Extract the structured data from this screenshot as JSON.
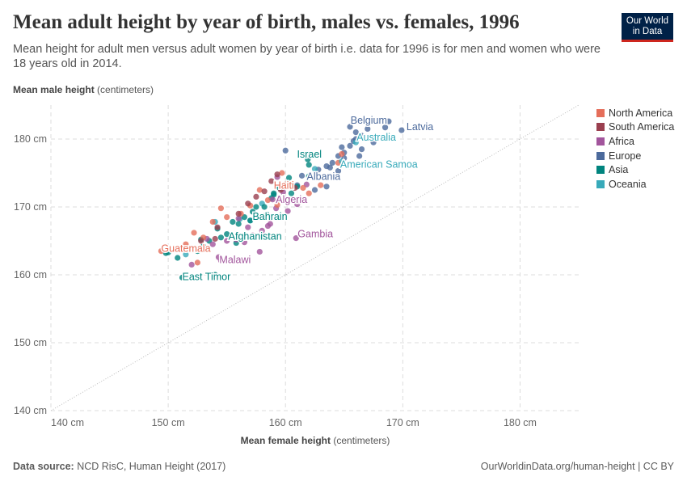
{
  "title": "Mean adult height by year of birth, males vs. females, 1996",
  "subtitle": "Mean height for adult men versus adult women by year of birth i.e. data for 1996 is for men and women who were 18 years old in 2014.",
  "logo": {
    "line1": "Our World",
    "line2": "in Data"
  },
  "footer": {
    "source_label": "Data source:",
    "source": "NCD RisC, Human Height (2017)",
    "link": "OurWorldinData.org/human-height | CC BY"
  },
  "chart_data": {
    "type": "scatter",
    "title": "Mean adult height by year of birth, males vs. females, 1996",
    "xlabel": "Mean female height",
    "xlabel_unit": "(centimeters)",
    "ylabel": "Mean male height",
    "ylabel_unit": "(centimeters)",
    "xlim": [
      140,
      185
    ],
    "ylim": [
      140,
      185
    ],
    "xticks": [
      140,
      150,
      160,
      170,
      180
    ],
    "yticks": [
      140,
      150,
      160,
      170,
      180
    ],
    "tick_suffix": " cm",
    "grid": true,
    "reference_line": "y = x (dotted)",
    "legend_position": "right",
    "regions": [
      {
        "name": "North America",
        "color": "#e56e5a"
      },
      {
        "name": "South America",
        "color": "#9a3f4f"
      },
      {
        "name": "Africa",
        "color": "#a2559c"
      },
      {
        "name": "Europe",
        "color": "#4c6a9c"
      },
      {
        "name": "Asia",
        "color": "#00847e"
      },
      {
        "name": "Oceania",
        "color": "#38aaba"
      }
    ],
    "labeled": [
      {
        "name": "Latvia",
        "x": 169.9,
        "y": 181.3,
        "region": 3
      },
      {
        "name": "Belgium",
        "x": 168.8,
        "y": 182.6,
        "region": 3
      },
      {
        "name": "Australia",
        "x": 166.0,
        "y": 179.5,
        "region": 5
      },
      {
        "name": "Israel",
        "x": 161.9,
        "y": 177.0,
        "region": 4
      },
      {
        "name": "American Samoa",
        "x": 164.8,
        "y": 176.7,
        "region": 5
      },
      {
        "name": "Albania",
        "x": 161.4,
        "y": 174.6,
        "region": 3
      },
      {
        "name": "Haiti",
        "x": 160.0,
        "y": 173.3,
        "region": 0
      },
      {
        "name": "Algeria",
        "x": 158.9,
        "y": 171.1,
        "region": 2
      },
      {
        "name": "Bahrain",
        "x": 158.4,
        "y": 168.9,
        "region": 4
      },
      {
        "name": "Afghanistan",
        "x": 155.0,
        "y": 166.0,
        "region": 4
      },
      {
        "name": "Gambia",
        "x": 160.9,
        "y": 165.4,
        "region": 2
      },
      {
        "name": "Malawi",
        "x": 154.5,
        "y": 162.1,
        "region": 2
      },
      {
        "name": "Guatemala",
        "x": 149.4,
        "y": 163.5,
        "region": 0
      },
      {
        "name": "East Timor",
        "x": 151.2,
        "y": 159.6,
        "region": 4
      }
    ],
    "points": [
      [
        163.5,
        176,
        3
      ],
      [
        164,
        176.5,
        3
      ],
      [
        164.5,
        177.5,
        3
      ],
      [
        165,
        178,
        3
      ],
      [
        165.5,
        179,
        3
      ],
      [
        166,
        180,
        3
      ],
      [
        166.5,
        180.5,
        3
      ],
      [
        167,
        181.5,
        3
      ],
      [
        165.5,
        181.8,
        3
      ],
      [
        166,
        181,
        3
      ],
      [
        167.5,
        179.5,
        3
      ],
      [
        166.5,
        178.5,
        3
      ],
      [
        164.5,
        175.3,
        3
      ],
      [
        163.5,
        173,
        3
      ],
      [
        162.5,
        172.5,
        3
      ],
      [
        160,
        178.3,
        3
      ],
      [
        165,
        177.2,
        3
      ],
      [
        163.8,
        175.8,
        3
      ],
      [
        166.3,
        177.5,
        3
      ],
      [
        164.8,
        178.8,
        3
      ],
      [
        168.5,
        181.7,
        3
      ],
      [
        162.8,
        175.5,
        3
      ],
      [
        161,
        173.2,
        3
      ],
      [
        165.8,
        179.7,
        3
      ],
      [
        165.5,
        176.2,
        5
      ],
      [
        156.1,
        168.2,
        5
      ],
      [
        154,
        167.8,
        5
      ],
      [
        151.5,
        163,
        5
      ],
      [
        157,
        168,
        5
      ],
      [
        158,
        170.5,
        5
      ],
      [
        162.5,
        175.6,
        5
      ],
      [
        162,
        174.5,
        4
      ],
      [
        161,
        173,
        4
      ],
      [
        160.5,
        172,
        4
      ],
      [
        159,
        172,
        4
      ],
      [
        157.5,
        170,
        4
      ],
      [
        157,
        168,
        4
      ],
      [
        156,
        167.5,
        4
      ],
      [
        154.5,
        165.5,
        4
      ],
      [
        153.5,
        165,
        4
      ],
      [
        152.5,
        163.5,
        4
      ],
      [
        151,
        163.8,
        4
      ],
      [
        150,
        163.3,
        4
      ],
      [
        149.8,
        163.2,
        4
      ],
      [
        154,
        160,
        4
      ],
      [
        150.8,
        162.5,
        4
      ],
      [
        152.8,
        165.2,
        4
      ],
      [
        154.2,
        166.8,
        4
      ],
      [
        155.5,
        167.8,
        4
      ],
      [
        156.5,
        168.5,
        4
      ],
      [
        158.8,
        171.3,
        4
      ],
      [
        159.5,
        172.8,
        4
      ],
      [
        160.3,
        174.3,
        4
      ],
      [
        162,
        176.2,
        4
      ],
      [
        157.2,
        169.3,
        4
      ],
      [
        155.8,
        164.7,
        4
      ],
      [
        153,
        164.2,
        4
      ],
      [
        158.2,
        170,
        4
      ],
      [
        159,
        171.8,
        4
      ],
      [
        155.8,
        165.2,
        2
      ],
      [
        156.5,
        164.8,
        2
      ],
      [
        157.8,
        163.4,
        2
      ],
      [
        158.5,
        167.2,
        2
      ],
      [
        159.2,
        169.8,
        2
      ],
      [
        160.2,
        169.4,
        2
      ],
      [
        157.5,
        168.8,
        2
      ],
      [
        161,
        170.4,
        2
      ],
      [
        159.8,
        172.2,
        2
      ],
      [
        158,
        166.5,
        2
      ],
      [
        156.8,
        167,
        2
      ],
      [
        157.2,
        165.8,
        2
      ],
      [
        153.3,
        165.3,
        2
      ],
      [
        152,
        161.5,
        2
      ],
      [
        159.3,
        174.4,
        2
      ],
      [
        160.5,
        173,
        2
      ],
      [
        161.8,
        173.3,
        2
      ],
      [
        158.7,
        167.5,
        2
      ],
      [
        156,
        168.3,
        2
      ],
      [
        154.3,
        162.6,
        2
      ],
      [
        155,
        165,
        2
      ],
      [
        153.8,
        164.5,
        2
      ],
      [
        162,
        172,
        0
      ],
      [
        163,
        173.2,
        0
      ],
      [
        161.5,
        172.8,
        0
      ],
      [
        159.3,
        170.3,
        0
      ],
      [
        157.8,
        172.5,
        0
      ],
      [
        156.2,
        169,
        0
      ],
      [
        155,
        168.5,
        0
      ],
      [
        154.5,
        169.8,
        0
      ],
      [
        153.8,
        167.8,
        0
      ],
      [
        152.2,
        166.2,
        0
      ],
      [
        153,
        165.5,
        0
      ],
      [
        164.5,
        176.5,
        0
      ],
      [
        165.5,
        176,
        0
      ],
      [
        159.7,
        175,
        0
      ],
      [
        158.5,
        171,
        0
      ],
      [
        157,
        170.2,
        0
      ],
      [
        152.5,
        161.8,
        0
      ],
      [
        151.5,
        164.5,
        0
      ],
      [
        164.8,
        177.8,
        0
      ],
      [
        159.3,
        174.8,
        1
      ],
      [
        158.2,
        172.3,
        1
      ],
      [
        157.5,
        171.5,
        1
      ],
      [
        156.8,
        170.5,
        1
      ],
      [
        160.8,
        172.8,
        1
      ],
      [
        159.6,
        172.5,
        1
      ],
      [
        156,
        169,
        1
      ],
      [
        154.2,
        167,
        1
      ],
      [
        152.8,
        165,
        1
      ],
      [
        154,
        165.3,
        1
      ],
      [
        158.8,
        173.8,
        1
      ]
    ]
  }
}
